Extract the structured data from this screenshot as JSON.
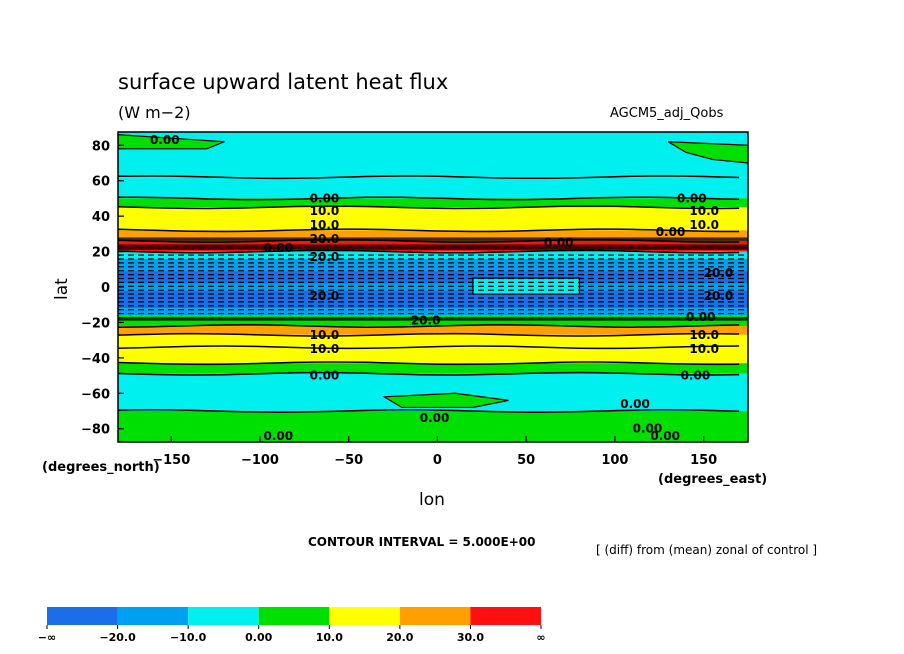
{
  "chart_data": {
    "type": "heatmap",
    "title": "surface upward latent heat flux",
    "units": "(W m−2)",
    "experiment": "AGCM5_adj_Qobs",
    "xlabel": "lon",
    "ylabel": "lat",
    "x_unit_label": "(degrees_east)",
    "y_unit_label": "(degrees_north)",
    "xlim": [
      -180,
      175
    ],
    "ylim": [
      -87.5,
      87.5
    ],
    "x_ticks": [
      "−150",
      "−100",
      "−50",
      "0",
      "50",
      "100",
      "150"
    ],
    "x_tick_values": [
      -150,
      -100,
      -50,
      0,
      50,
      100,
      150
    ],
    "y_ticks": [
      "80",
      "60",
      "40",
      "20",
      "0",
      "−20",
      "−40",
      "−60",
      "−80"
    ],
    "y_tick_values": [
      80,
      60,
      40,
      20,
      0,
      -20,
      -40,
      -60,
      -80
    ],
    "contour_interval_text": "CONTOUR INTERVAL = 5.000E+00",
    "difference_note": "[ (diff) from (mean) zonal of control ]",
    "colorbar": {
      "labels": [
        "−∞",
        "−20.0",
        "−10.0",
        "0.00",
        "10.0",
        "20.0",
        "30.0",
        "∞"
      ],
      "colors": [
        "#1a6ee8",
        "#00a0f0",
        "#00f0f0",
        "#00e000",
        "#ffff00",
        "#ffa000",
        "#ff1010"
      ]
    },
    "latitude_bands": [
      {
        "lat_min": 62,
        "lat_max": 87.5,
        "level": "-10 to 0",
        "color": "#00f0f0"
      },
      {
        "lat_min": 50,
        "lat_max": 62,
        "level": "-10 to 0",
        "color": "#00f0f0"
      },
      {
        "lat_min": 45,
        "lat_max": 50,
        "level": "0 to 10",
        "color": "#00e000"
      },
      {
        "lat_min": 32,
        "lat_max": 45,
        "level": "10 to 20",
        "color": "#ffff00"
      },
      {
        "lat_min": 26,
        "lat_max": 32,
        "level": "20 to 30",
        "color": "#ffa000"
      },
      {
        "lat_min": 20,
        "lat_max": 26,
        "level": "> 30",
        "color": "#ff1010"
      },
      {
        "lat_min": 16,
        "lat_max": 20,
        "level": "-10 to 0",
        "color": "#00f0f0"
      },
      {
        "lat_min": 9,
        "lat_max": 16,
        "level": "-20 to -10",
        "color": "#00a0f0"
      },
      {
        "lat_min": 2,
        "lat_max": 9,
        "level": "< -20",
        "color": "#1a6ee8"
      },
      {
        "lat_min": -2,
        "lat_max": 2,
        "level": "-20 to -10",
        "color": "#00a0f0"
      },
      {
        "lat_min": -12,
        "lat_max": -2,
        "level": "< -20",
        "color": "#1a6ee8"
      },
      {
        "lat_min": -16,
        "lat_max": -12,
        "level": "-20 to -10",
        "color": "#00a0f0"
      },
      {
        "lat_min": -22,
        "lat_max": -16,
        "level": "0 to 10",
        "color": "#00e000"
      },
      {
        "lat_min": -27,
        "lat_max": -22,
        "level": "20 to 30",
        "color": "#ffa000"
      },
      {
        "lat_min": -34,
        "lat_max": -27,
        "level": "10 to 20",
        "color": "#ffff00"
      },
      {
        "lat_min": -43,
        "lat_max": -34,
        "level": "10 to 20",
        "color": "#ffff00"
      },
      {
        "lat_min": -49,
        "lat_max": -43,
        "level": "0 to 10",
        "color": "#00e000"
      },
      {
        "lat_min": -70,
        "lat_max": -49,
        "level": "-10 to 0",
        "color": "#00f0f0"
      },
      {
        "lat_min": -87.5,
        "lat_max": -70,
        "level": "0 to 10",
        "color": "#00e000"
      }
    ],
    "contour_labels": [
      {
        "text": "0.00",
        "lon": -162,
        "lat": 83
      },
      {
        "text": "0.00",
        "lon": -72,
        "lat": 50
      },
      {
        "text": "10.0",
        "lon": -72,
        "lat": 43
      },
      {
        "text": "10.0",
        "lon": -72,
        "lat": 35
      },
      {
        "text": "20.0",
        "lon": -72,
        "lat": 27
      },
      {
        "text": "0.00",
        "lon": 135,
        "lat": 50
      },
      {
        "text": "10.0",
        "lon": 142,
        "lat": 43
      },
      {
        "text": "10.0",
        "lon": 142,
        "lat": 35
      },
      {
        "text": "0.00",
        "lon": 123,
        "lat": 31
      },
      {
        "text": "0.00",
        "lon": 60,
        "lat": 25
      },
      {
        "text": "0.00",
        "lon": -98,
        "lat": 22
      },
      {
        "text": "20.0",
        "lon": -72,
        "lat": 17
      },
      {
        "text": "20.0",
        "lon": 150,
        "lat": 8
      },
      {
        "text": "20.0",
        "lon": -72,
        "lat": -5
      },
      {
        "text": "20.0",
        "lon": 150,
        "lat": -5
      },
      {
        "text": "20.0",
        "lon": -15,
        "lat": -19
      },
      {
        "text": "0.00",
        "lon": 140,
        "lat": -17
      },
      {
        "text": "10.0",
        "lon": -72,
        "lat": -27
      },
      {
        "text": "10.0",
        "lon": 142,
        "lat": -27
      },
      {
        "text": "10.0",
        "lon": -72,
        "lat": -35
      },
      {
        "text": "10.0",
        "lon": 142,
        "lat": -35
      },
      {
        "text": "0.00",
        "lon": -72,
        "lat": -50
      },
      {
        "text": "0.00",
        "lon": 137,
        "lat": -50
      },
      {
        "text": "0.00",
        "lon": -10,
        "lat": -74
      },
      {
        "text": "0.00",
        "lon": 103,
        "lat": -66
      },
      {
        "text": "0.00",
        "lon": 110,
        "lat": -80
      },
      {
        "text": "0.00",
        "lon": 120,
        "lat": -84
      },
      {
        "text": "0.00",
        "lon": -98,
        "lat": -84
      }
    ]
  }
}
